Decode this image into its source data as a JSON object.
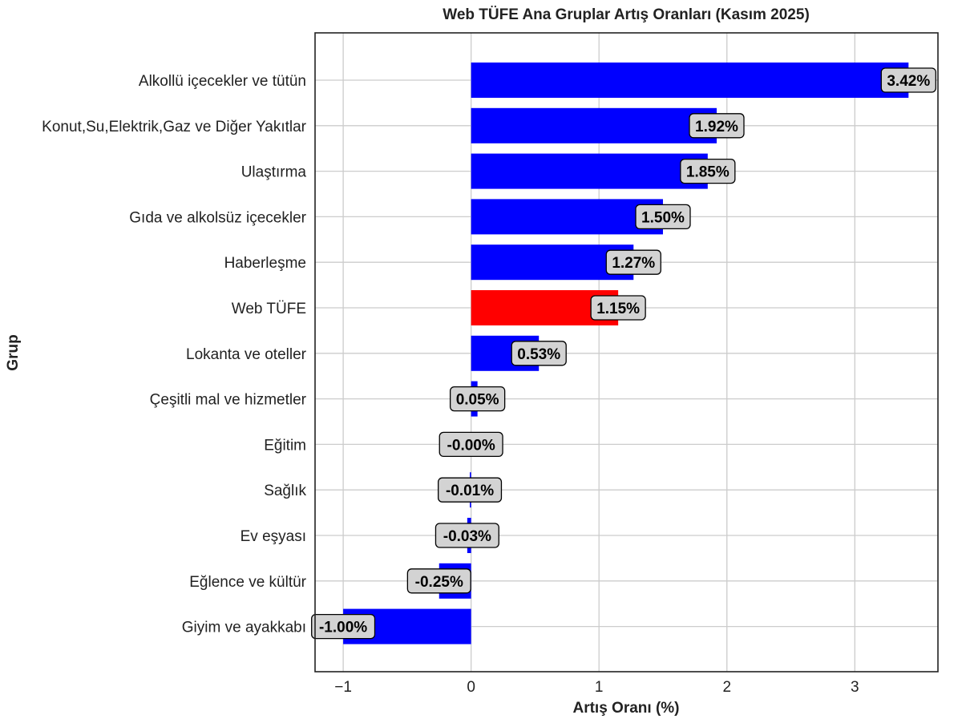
{
  "chart_data": {
    "type": "bar",
    "orientation": "horizontal",
    "title": "Web TÜFE Ana Gruplar Artış Oranları (Kasım 2025)",
    "xlabel": "Artış Oranı (%)",
    "ylabel": "Grup",
    "xlim": [
      -1.22,
      3.65
    ],
    "xticks": [
      -1,
      0,
      1,
      2,
      3
    ],
    "xtick_labels": [
      "−1",
      "0",
      "1",
      "2",
      "3"
    ],
    "grid": true,
    "categories": [
      "Alkollü içecekler ve tütün",
      "Konut,Su,Elektrik,Gaz ve Diğer Yakıtlar",
      "Ulaştırma",
      "Gıda ve alkolsüz içecekler",
      "Haberleşme",
      "Web TÜFE",
      "Lokanta ve oteller",
      "Çeşitli mal ve hizmetler",
      "Eğitim",
      "Sağlık",
      "Ev eşyası",
      "Eğlence ve kültür",
      "Giyim ve ayakkabı"
    ],
    "values": [
      3.42,
      1.92,
      1.85,
      1.5,
      1.27,
      1.15,
      0.53,
      0.05,
      -0.0,
      -0.01,
      -0.03,
      -0.25,
      -1.0
    ],
    "data_labels": [
      "3.42%",
      "1.92%",
      "1.85%",
      "1.50%",
      "1.27%",
      "1.15%",
      "0.53%",
      "0.05%",
      "-0.00%",
      "-0.01%",
      "-0.03%",
      "-0.25%",
      "-1.00%"
    ],
    "colors": [
      "#0000ff",
      "#0000ff",
      "#0000ff",
      "#0000ff",
      "#0000ff",
      "#ff0000",
      "#0000ff",
      "#0000ff",
      "#0000ff",
      "#0000ff",
      "#0000ff",
      "#0000ff",
      "#0000ff"
    ]
  }
}
